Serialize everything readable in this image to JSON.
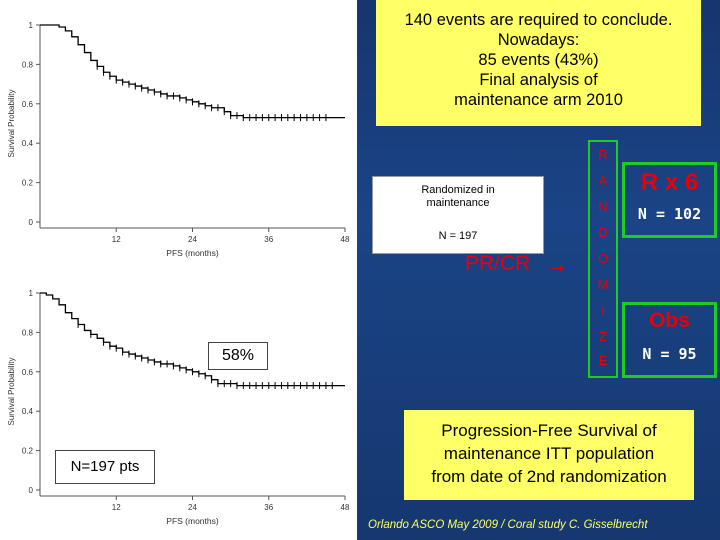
{
  "top_note": {
    "lines": [
      "140 events are required to conclude.",
      "Nowadays:",
      "85 events (43%)",
      "Final analysis of",
      "maintenance arm 2010"
    ]
  },
  "randomized_box": {
    "title_line1": "Randomized in",
    "title_line2": "maintenance",
    "n": "N = 197"
  },
  "pr_cr": "PR/CR",
  "arrow": "→",
  "randomize_letters": [
    "R",
    "A",
    "N",
    "D",
    "O",
    "M",
    "I",
    "Z",
    "E"
  ],
  "arm_r": {
    "label": "R x 6",
    "n": "N = 102"
  },
  "arm_obs": {
    "label": "Obs",
    "n": "N = 95"
  },
  "annotations": {
    "pct": "58%",
    "npts": "N=197 pts"
  },
  "pfs_note": {
    "lines": [
      "Progression-Free Survival of",
      "maintenance ITT population",
      "from date of 2nd randomization"
    ]
  },
  "footer": "Orlando ASCO May 2009 / Coral study C. Gisselbrecht",
  "colors": {
    "panel_blue": "#1a4486",
    "note_yellow": "#ffff66",
    "accent_red": "#e8000b",
    "box_green": "#1fcc1f",
    "curve": "#000000"
  },
  "chart_data": [
    {
      "type": "line",
      "step": true,
      "title": "",
      "xlabel": "PFS (months)",
      "ylabel": "Survival Probability",
      "xlim": [
        0,
        48
      ],
      "ylim": [
        0,
        1
      ],
      "xticks": [
        "12",
        "24",
        "36",
        "48"
      ],
      "yticks": [
        "0",
        "0.2",
        "0.4",
        "0.6",
        "0.8",
        "1"
      ],
      "series": [
        {
          "x": [
            0,
            2,
            3,
            4,
            5,
            6,
            7,
            8,
            9,
            10,
            11,
            12,
            13,
            14,
            15,
            16,
            17,
            18,
            19,
            20,
            21,
            22,
            23,
            24,
            25,
            26,
            27,
            28,
            29,
            30,
            31,
            32,
            34,
            36,
            38,
            40,
            42,
            45,
            48
          ],
          "y": [
            1.0,
            1.0,
            0.99,
            0.97,
            0.94,
            0.9,
            0.86,
            0.82,
            0.79,
            0.76,
            0.74,
            0.72,
            0.71,
            0.7,
            0.69,
            0.68,
            0.67,
            0.66,
            0.65,
            0.64,
            0.64,
            0.63,
            0.62,
            0.61,
            0.6,
            0.59,
            0.58,
            0.58,
            0.56,
            0.54,
            0.54,
            0.53,
            0.53,
            0.53,
            0.53,
            0.53,
            0.53,
            0.53,
            0.53
          ],
          "censor_x": [
            9,
            10,
            11,
            12,
            13,
            14,
            15,
            16,
            17,
            18,
            19,
            20,
            21,
            22,
            23,
            24,
            25,
            26,
            27,
            28,
            29,
            30,
            31,
            32,
            33,
            34,
            35,
            36,
            37,
            38,
            39,
            40,
            41,
            42,
            43,
            44,
            45
          ]
        }
      ]
    },
    {
      "type": "line",
      "step": true,
      "title": "",
      "xlabel": "PFS (months)",
      "ylabel": "Survival Probability",
      "xlim": [
        0,
        48
      ],
      "ylim": [
        0,
        1
      ],
      "xticks": [
        "12",
        "24",
        "36",
        "48"
      ],
      "yticks": [
        "0",
        "0.2",
        "0.4",
        "0.6",
        "0.8",
        "1"
      ],
      "series": [
        {
          "x": [
            0,
            1,
            2,
            3,
            4,
            5,
            6,
            7,
            8,
            9,
            10,
            11,
            12,
            13,
            14,
            15,
            16,
            17,
            18,
            19,
            20,
            21,
            22,
            23,
            24,
            25,
            26,
            27,
            28,
            29,
            30,
            31,
            32,
            34,
            36,
            40,
            44,
            48
          ],
          "y": [
            1.0,
            0.99,
            0.97,
            0.94,
            0.9,
            0.87,
            0.84,
            0.81,
            0.79,
            0.77,
            0.75,
            0.73,
            0.72,
            0.7,
            0.69,
            0.68,
            0.67,
            0.66,
            0.65,
            0.64,
            0.64,
            0.63,
            0.62,
            0.61,
            0.6,
            0.59,
            0.58,
            0.56,
            0.54,
            0.54,
            0.54,
            0.53,
            0.53,
            0.53,
            0.53,
            0.53,
            0.53,
            0.53
          ],
          "censor_x": [
            6,
            8,
            10,
            11,
            12,
            13,
            14,
            15,
            16,
            17,
            18,
            19,
            20,
            21,
            22,
            23,
            24,
            25,
            26,
            27,
            28,
            29,
            30,
            31,
            32,
            33,
            34,
            35,
            36,
            37,
            38,
            39,
            40,
            41,
            42,
            43,
            44,
            45,
            46
          ]
        }
      ]
    }
  ]
}
